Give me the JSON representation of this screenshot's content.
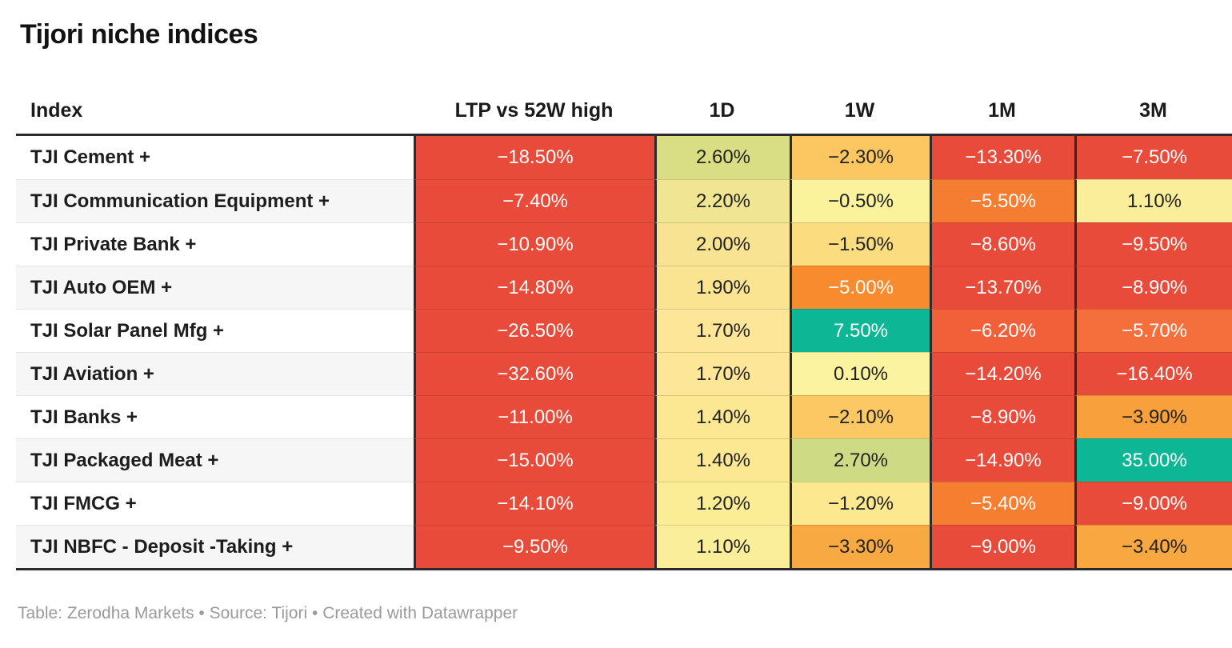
{
  "title": "Tijori niche indices",
  "footer": "Table: Zerodha Markets • Source: Tijori • Created with Datawrapper",
  "columns": [
    "Index",
    "LTP vs 52W high",
    "1D",
    "1W",
    "1M",
    "3M"
  ],
  "palette": {
    "strong_negative": "#e84b3a",
    "negative_orange": "#f57d31",
    "mild_negative_amber": "#f9a740",
    "neutral_yellow": "#fbf39c",
    "mild_positive_green": "#d9de85",
    "strong_positive_teal": "#0db795",
    "border_dark": "#2b2b2b",
    "zebra_gray": "#f6f6f6"
  },
  "chart_data": {
    "type": "table",
    "title": "Tijori niche indices",
    "columns": [
      "Index",
      "LTP vs 52W high",
      "1D",
      "1W",
      "1M",
      "3M"
    ],
    "rows": [
      {
        "index": "TJI Cement +",
        "values": [
          "−18.50%",
          "2.60%",
          "−2.30%",
          "−13.30%",
          "−7.50%"
        ],
        "numeric": [
          -18.5,
          2.6,
          -2.3,
          -13.3,
          -7.5
        ],
        "colors": [
          "#e84b3a",
          "#d9de85",
          "#fcc660",
          "#e84b3a",
          "#e84b3a"
        ],
        "text_colors": [
          "#ffffff",
          "#222222",
          "#222222",
          "#ffffff",
          "#ffffff"
        ]
      },
      {
        "index": "TJI Communication Equipment +",
        "values": [
          "−7.40%",
          "2.20%",
          "−0.50%",
          "−5.50%",
          "1.10%"
        ],
        "numeric": [
          -7.4,
          2.2,
          -0.5,
          -5.5,
          1.1
        ],
        "colors": [
          "#e84b3a",
          "#efe593",
          "#fbf39c",
          "#f57d31",
          "#fbee9a"
        ],
        "text_colors": [
          "#ffffff",
          "#222222",
          "#222222",
          "#ffffff",
          "#222222"
        ]
      },
      {
        "index": "TJI Private Bank +",
        "values": [
          "−10.90%",
          "2.00%",
          "−1.50%",
          "−8.60%",
          "−9.50%"
        ],
        "numeric": [
          -10.9,
          2.0,
          -1.5,
          -8.6,
          -9.5
        ],
        "colors": [
          "#e84b3a",
          "#f7e392",
          "#fbdd7f",
          "#e84b3a",
          "#e84b3a"
        ],
        "text_colors": [
          "#ffffff",
          "#222222",
          "#222222",
          "#ffffff",
          "#ffffff"
        ]
      },
      {
        "index": "TJI Auto OEM +",
        "values": [
          "−14.80%",
          "1.90%",
          "−5.00%",
          "−13.70%",
          "−8.90%"
        ],
        "numeric": [
          -14.8,
          1.9,
          -5.0,
          -13.7,
          -8.9
        ],
        "colors": [
          "#e84b3a",
          "#fae492",
          "#f78b2e",
          "#e84b3a",
          "#e84b3a"
        ],
        "text_colors": [
          "#ffffff",
          "#222222",
          "#ffffff",
          "#ffffff",
          "#ffffff"
        ]
      },
      {
        "index": "TJI Solar Panel Mfg +",
        "values": [
          "−26.50%",
          "1.70%",
          "7.50%",
          "−6.20%",
          "−5.70%"
        ],
        "numeric": [
          -26.5,
          1.7,
          7.5,
          -6.2,
          -5.7
        ],
        "colors": [
          "#e84b3a",
          "#fde698",
          "#0db795",
          "#f2603a",
          "#f46f3b"
        ],
        "text_colors": [
          "#ffffff",
          "#222222",
          "#ffffff",
          "#ffffff",
          "#ffffff"
        ]
      },
      {
        "index": "TJI Aviation +",
        "values": [
          "−32.60%",
          "1.70%",
          "0.10%",
          "−14.20%",
          "−16.40%"
        ],
        "numeric": [
          -32.6,
          1.7,
          0.1,
          -14.2,
          -16.4
        ],
        "colors": [
          "#e84b3a",
          "#fde698",
          "#fcf3a0",
          "#e84b3a",
          "#e84b3a"
        ],
        "text_colors": [
          "#ffffff",
          "#222222",
          "#222222",
          "#ffffff",
          "#ffffff"
        ]
      },
      {
        "index": "TJI Banks +",
        "values": [
          "−11.00%",
          "1.40%",
          "−2.10%",
          "−8.90%",
          "−3.90%"
        ],
        "numeric": [
          -11.0,
          1.4,
          -2.1,
          -8.9,
          -3.9
        ],
        "colors": [
          "#e84b3a",
          "#fce793",
          "#fcc864",
          "#e84b3a",
          "#f7a03c"
        ],
        "text_colors": [
          "#ffffff",
          "#222222",
          "#222222",
          "#ffffff",
          "#222222"
        ]
      },
      {
        "index": "TJI Packaged Meat +",
        "values": [
          "−15.00%",
          "1.40%",
          "2.70%",
          "−14.90%",
          "35.00%"
        ],
        "numeric": [
          -15.0,
          1.4,
          2.7,
          -14.9,
          35.0
        ],
        "colors": [
          "#e84b3a",
          "#fce793",
          "#cedb84",
          "#e84b3a",
          "#0db795"
        ],
        "text_colors": [
          "#ffffff",
          "#222222",
          "#222222",
          "#ffffff",
          "#ffffff"
        ]
      },
      {
        "index": "TJI FMCG +",
        "values": [
          "−14.10%",
          "1.20%",
          "−1.20%",
          "−5.40%",
          "−9.00%"
        ],
        "numeric": [
          -14.1,
          1.2,
          -1.2,
          -5.4,
          -9.0
        ],
        "colors": [
          "#e84b3a",
          "#fbec96",
          "#fce88f",
          "#f57e31",
          "#e84b3a"
        ],
        "text_colors": [
          "#ffffff",
          "#222222",
          "#222222",
          "#ffffff",
          "#ffffff"
        ]
      },
      {
        "index": "TJI NBFC - Deposit -Taking +",
        "values": [
          "−9.50%",
          "1.10%",
          "−3.30%",
          "−9.00%",
          "−3.40%"
        ],
        "numeric": [
          -9.5,
          1.1,
          -3.3,
          -9.0,
          -3.4
        ],
        "colors": [
          "#e84b3a",
          "#fbee9a",
          "#f9a942",
          "#e84b3a",
          "#f9a740"
        ],
        "text_colors": [
          "#ffffff",
          "#222222",
          "#222222",
          "#ffffff",
          "#222222"
        ]
      }
    ]
  }
}
